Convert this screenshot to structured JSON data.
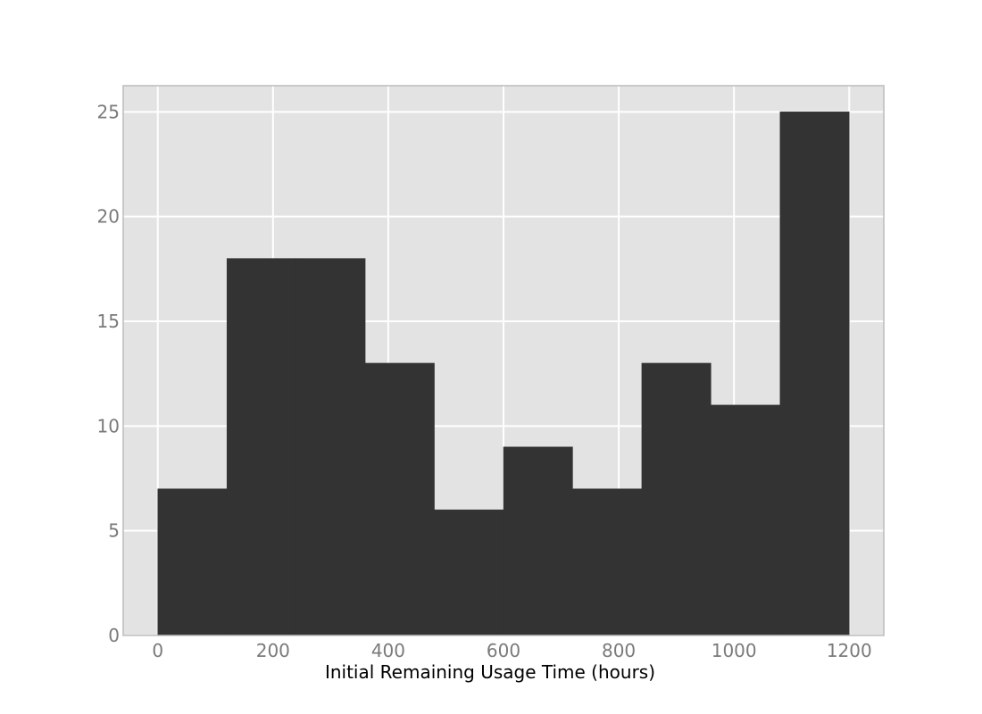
{
  "chart_data": {
    "type": "bar",
    "subtype": "histogram",
    "title": "",
    "xlabel": "Initial Remaining Usage Time (hours)",
    "ylabel": "",
    "bins": [
      {
        "start": 0,
        "end": 120,
        "count": 7
      },
      {
        "start": 120,
        "end": 240,
        "count": 18
      },
      {
        "start": 240,
        "end": 360,
        "count": 18
      },
      {
        "start": 360,
        "end": 480,
        "count": 13
      },
      {
        "start": 480,
        "end": 600,
        "count": 6
      },
      {
        "start": 600,
        "end": 720,
        "count": 9
      },
      {
        "start": 720,
        "end": 840,
        "count": 7
      },
      {
        "start": 840,
        "end": 960,
        "count": 13
      },
      {
        "start": 960,
        "end": 1080,
        "count": 11
      },
      {
        "start": 1080,
        "end": 1200,
        "count": 25
      }
    ],
    "xlim": [
      -60,
      1260
    ],
    "ylim": [
      0,
      26.25
    ],
    "x_ticks": [
      0,
      200,
      400,
      600,
      800,
      1000,
      1200
    ],
    "y_ticks": [
      0,
      5,
      10,
      15,
      20,
      25
    ],
    "grid": true,
    "colors": {
      "bar": "#333333",
      "plot_background": "#e3e3e3",
      "grid": "#ffffff",
      "frame": "#bcbcbc",
      "tick_text": "#7a7a7a"
    }
  }
}
